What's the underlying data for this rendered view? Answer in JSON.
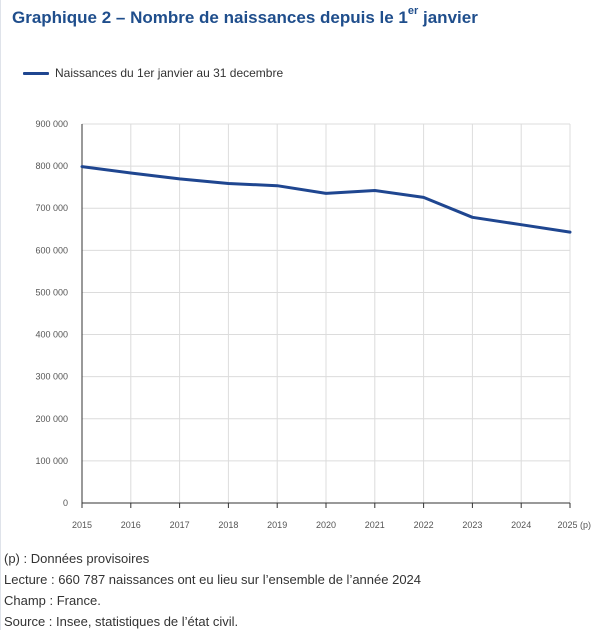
{
  "title": {
    "prefix": "Graphique 2 – Nombre de naissances depuis le 1",
    "sup": "er",
    "suffix": " janvier"
  },
  "colors": {
    "title": "#1f4e8c",
    "series": "#1f4690",
    "grid": "#dcdcdc"
  },
  "chart_data": {
    "type": "line",
    "title": "Graphique 2 – Nombre de naissances depuis le 1er janvier",
    "categories": [
      "2015",
      "2016",
      "2017",
      "2018",
      "2019",
      "2020",
      "2021",
      "2022",
      "2023",
      "2024",
      "2025 (p)"
    ],
    "series": [
      {
        "name": "Naissances du 1er janvier au 31 decembre",
        "color": "#1f4690",
        "values": [
          798900,
          783600,
          769600,
          758600,
          753400,
          735200,
          742100,
          725600,
          678400,
          660787,
          643400
        ]
      }
    ],
    "ylim": [
      0,
      900000
    ],
    "yticks": [
      0,
      100000,
      200000,
      300000,
      400000,
      500000,
      600000,
      700000,
      800000,
      900000
    ],
    "ytick_labels": [
      "0",
      "100 000",
      "200 000",
      "300 000",
      "400 000",
      "500 000",
      "600 000",
      "700 000",
      "800 000",
      "900 000"
    ],
    "grid": true,
    "legend": "top-left"
  },
  "footnotes": [
    "(p) : Données provisoires",
    "Lecture : 660 787 naissances ont eu lieu sur l’ensemble de l’année 2024",
    "Champ : France.",
    "Source : Insee, statistiques de l’état civil."
  ]
}
